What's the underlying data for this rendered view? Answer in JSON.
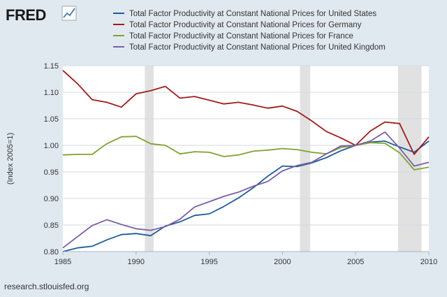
{
  "logo": {
    "text": "FRED",
    "icon": "line-chart-icon"
  },
  "source": "research.stlouisfed.org",
  "colors": {
    "background": "#e1e9f0",
    "plot_background": "#ffffff",
    "gridline": "#d3dbe3",
    "recession": "#e1e1e1"
  },
  "chart_data": {
    "type": "line",
    "title": "",
    "xlabel": "",
    "ylabel": "(Index 2005=1)",
    "xlim": [
      1985,
      2010
    ],
    "ylim": [
      0.8,
      1.15
    ],
    "x_ticks": [
      "1985",
      "1990",
      "1995",
      "2000",
      "2005",
      "2010"
    ],
    "y_ticks": [
      "0.80",
      "0.85",
      "0.90",
      "0.95",
      "1.00",
      "1.05",
      "1.10",
      "1.15"
    ],
    "grid": true,
    "legend": "top",
    "recessions": [
      [
        1990.6,
        1991.2
      ],
      [
        2001.2,
        2001.9
      ],
      [
        2007.9,
        2009.5
      ]
    ],
    "x": [
      1985,
      1986,
      1987,
      1988,
      1989,
      1990,
      1991,
      1992,
      1993,
      1994,
      1995,
      1996,
      1997,
      1998,
      1999,
      2000,
      2001,
      2002,
      2003,
      2004,
      2005,
      2006,
      2007,
      2008,
      2009,
      2010
    ],
    "series": [
      {
        "name": "Total Factor Productivity at Constant National Prices for United States",
        "color": "#1f5c99",
        "values": [
          0.8,
          0.807,
          0.81,
          0.822,
          0.832,
          0.834,
          0.83,
          0.848,
          0.856,
          0.868,
          0.871,
          0.885,
          0.901,
          0.92,
          0.942,
          0.961,
          0.96,
          0.967,
          0.977,
          0.99,
          1.0,
          1.006,
          1.008,
          0.997,
          0.987,
          1.008
        ]
      },
      {
        "name": "Total Factor Productivity at Constant National Prices for Germany",
        "color": "#a11b1b",
        "values": [
          1.141,
          1.116,
          1.086,
          1.081,
          1.072,
          1.097,
          1.103,
          1.111,
          1.089,
          1.092,
          1.085,
          1.078,
          1.081,
          1.076,
          1.07,
          1.074,
          1.064,
          1.046,
          1.026,
          1.014,
          1.0,
          1.027,
          1.044,
          1.041,
          0.983,
          1.016
        ]
      },
      {
        "name": "Total Factor Productivity at Constant National Prices for France",
        "color": "#7fa330",
        "values": [
          0.982,
          0.983,
          0.983,
          1.003,
          1.016,
          1.017,
          1.003,
          1.0,
          0.984,
          0.988,
          0.987,
          0.979,
          0.982,
          0.989,
          0.991,
          0.994,
          0.992,
          0.987,
          0.984,
          0.996,
          1.0,
          1.005,
          1.004,
          0.986,
          0.954,
          0.959
        ]
      },
      {
        "name": "Total Factor Productivity at Constant National Prices for United Kingdom",
        "color": "#7b5ea7",
        "values": [
          0.807,
          0.828,
          0.849,
          0.86,
          0.851,
          0.843,
          0.84,
          0.847,
          0.861,
          0.884,
          0.894,
          0.904,
          0.912,
          0.923,
          0.932,
          0.952,
          0.962,
          0.968,
          0.984,
          0.999,
          1.0,
          1.008,
          1.025,
          0.995,
          0.961,
          0.968
        ]
      }
    ]
  }
}
